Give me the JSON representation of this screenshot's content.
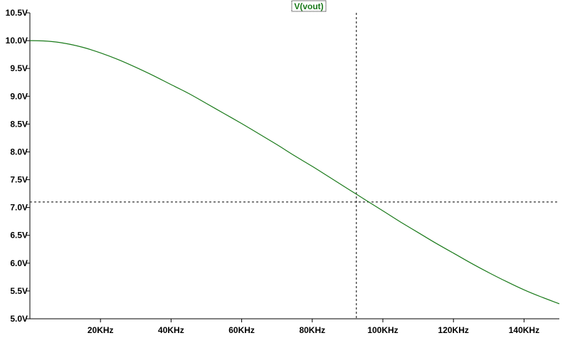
{
  "chart_data": {
    "type": "line",
    "title": "",
    "xlabel": "",
    "ylabel": "",
    "xlim": [
      0,
      150000
    ],
    "ylim": [
      5.0,
      10.5
    ],
    "x_ticks": [
      {
        "value": 20000,
        "label": "20KHz"
      },
      {
        "value": 40000,
        "label": "40KHz"
      },
      {
        "value": 60000,
        "label": "60KHz"
      },
      {
        "value": 80000,
        "label": "80KHz"
      },
      {
        "value": 100000,
        "label": "100KHz"
      },
      {
        "value": 120000,
        "label": "120KHz"
      },
      {
        "value": 140000,
        "label": "140KHz"
      }
    ],
    "y_ticks": [
      {
        "value": 5.0,
        "label": "5.0V"
      },
      {
        "value": 5.5,
        "label": "5.5V"
      },
      {
        "value": 6.0,
        "label": "6.0V"
      },
      {
        "value": 6.5,
        "label": "6.5V"
      },
      {
        "value": 7.0,
        "label": "7.0V"
      },
      {
        "value": 7.5,
        "label": "7.5V"
      },
      {
        "value": 8.0,
        "label": "8.0V"
      },
      {
        "value": 8.5,
        "label": "8.5V"
      },
      {
        "value": 9.0,
        "label": "9.0V"
      },
      {
        "value": 9.5,
        "label": "9.5V"
      },
      {
        "value": 10.0,
        "label": "10.0V"
      },
      {
        "value": 10.5,
        "label": "10.5V"
      }
    ],
    "series": [
      {
        "name": "V(vout)",
        "color": "#1a7a1a",
        "x": [
          0,
          5000,
          10000,
          15000,
          20000,
          25000,
          30000,
          35000,
          40000,
          45000,
          50000,
          55000,
          60000,
          65000,
          70000,
          75000,
          80000,
          85000,
          90000,
          95000,
          100000,
          105000,
          110000,
          115000,
          120000,
          125000,
          130000,
          135000,
          140000,
          145000,
          150000
        ],
        "y": [
          10.0,
          9.99,
          9.95,
          9.88,
          9.78,
          9.66,
          9.52,
          9.37,
          9.21,
          9.05,
          8.87,
          8.69,
          8.51,
          8.32,
          8.13,
          7.93,
          7.74,
          7.54,
          7.34,
          7.14,
          6.94,
          6.74,
          6.55,
          6.36,
          6.18,
          6.0,
          5.83,
          5.67,
          5.52,
          5.39,
          5.27
        ]
      }
    ],
    "cursor": {
      "x": 92500,
      "y": 7.1
    },
    "grid": false,
    "colors": {
      "axis": "#000000",
      "cursor": "#000000",
      "label_box": "#000000"
    }
  }
}
